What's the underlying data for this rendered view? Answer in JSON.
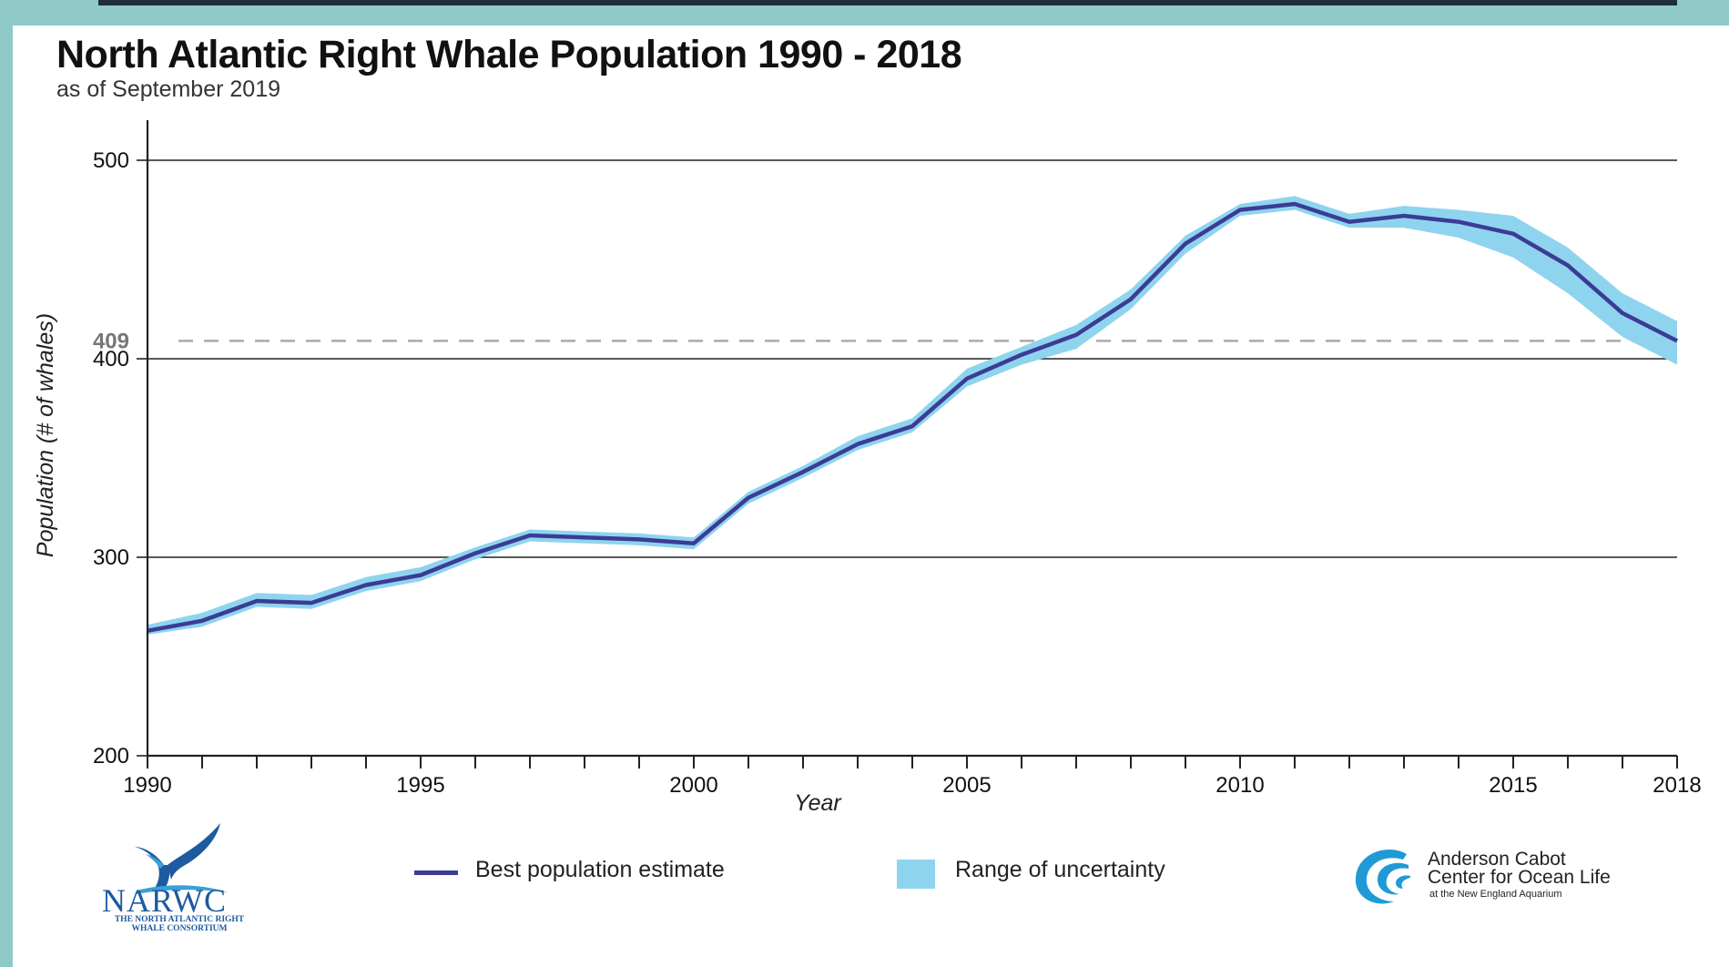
{
  "header": {
    "title": "North Atlantic Right Whale Population 1990 - 2018",
    "subtitle": "as of September 2019"
  },
  "chart_data": {
    "type": "line",
    "title": "North Atlantic Right Whale Population 1990 - 2018",
    "subtitle": "as of September 2019",
    "xlabel": "Year",
    "ylabel": "Population (# of whales)",
    "xlim": [
      1990,
      2018
    ],
    "ylim": [
      200,
      500
    ],
    "x_ticks": [
      1990,
      1991,
      1992,
      1993,
      1994,
      1995,
      1996,
      1997,
      1998,
      1999,
      2000,
      2001,
      2002,
      2003,
      2004,
      2005,
      2006,
      2007,
      2008,
      2009,
      2010,
      2011,
      2012,
      2013,
      2014,
      2015,
      2016,
      2017,
      2018
    ],
    "x_tick_labels": [
      "1990",
      "1995",
      "2000",
      "2005",
      "2010",
      "2015",
      "2018"
    ],
    "y_tick_labels": [
      "200",
      "300",
      "400",
      "500"
    ],
    "grid": "horizontal",
    "reference_line": {
      "value": 409,
      "label": "409",
      "style": "dashed",
      "color": "#aaaaaa"
    },
    "colors": {
      "line": "#3b3c95",
      "band": "#8fd4ee"
    },
    "series": [
      {
        "name": "Best population estimate",
        "x": [
          1990,
          1991,
          1992,
          1993,
          1994,
          1995,
          1996,
          1997,
          1998,
          1999,
          2000,
          2001,
          2002,
          2003,
          2004,
          2005,
          2006,
          2007,
          2008,
          2009,
          2010,
          2011,
          2012,
          2013,
          2014,
          2015,
          2016,
          2017,
          2018
        ],
        "y": [
          263,
          268,
          278,
          277,
          286,
          291,
          302,
          311,
          310,
          309,
          307,
          330,
          343,
          357,
          366,
          390,
          402,
          412,
          430,
          458,
          475,
          478,
          469,
          472,
          469,
          463,
          447,
          423,
          409
        ],
        "lower": [
          261,
          265,
          275,
          274,
          283,
          288,
          299,
          308,
          307,
          306,
          304,
          327,
          340,
          354,
          363,
          386,
          397,
          405,
          425,
          453,
          472,
          475,
          466,
          466,
          461,
          451,
          433,
          411,
          397
        ],
        "upper": [
          266,
          272,
          282,
          281,
          290,
          295,
          305,
          314,
          313,
          312,
          310,
          333,
          346,
          361,
          370,
          395,
          406,
          417,
          435,
          462,
          478,
          482,
          473,
          477,
          475,
          472,
          456,
          433,
          419
        ]
      }
    ],
    "legend": [
      {
        "label": "Best population estimate",
        "kind": "line"
      },
      {
        "label": "Range of uncertainty",
        "kind": "band"
      }
    ],
    "legend_placement": "bottom"
  },
  "logos": {
    "narwc": {
      "name": "NARWC",
      "subtitle": "THE NORTH ATLANTIC RIGHT WHALE CONSORTIUM",
      "icon": "whale-tail-icon"
    },
    "anderson_cabot": {
      "line1": "Anderson Cabot",
      "line2": "Center for Ocean Life",
      "line3": "at the New England Aquarium",
      "icon": "wave-icon"
    }
  }
}
